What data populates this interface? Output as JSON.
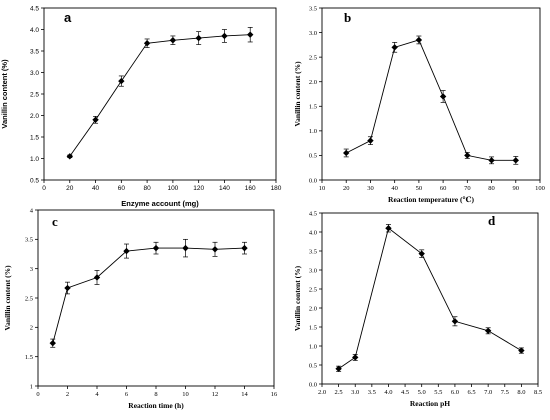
{
  "chart_data": [
    {
      "type": "line",
      "panel_letter": "a",
      "xlabel": "Enzyme account (mg)",
      "ylabel": "Vanillin content (%)",
      "xlim": [
        0,
        180
      ],
      "ylim": [
        0.5,
        4.5
      ],
      "xticks": [
        0,
        20,
        40,
        60,
        80,
        100,
        120,
        140,
        160,
        180
      ],
      "yticks": [
        0.5,
        1.0,
        1.5,
        2.0,
        2.5,
        3.0,
        3.5,
        4.0,
        4.5
      ],
      "x_tick_labels": [
        "0",
        "20",
        "40",
        "60",
        "80",
        "100",
        "120",
        "140",
        "160",
        "180"
      ],
      "y_tick_labels": [
        "0.5",
        "1.0",
        "1.5",
        "2.0",
        "2.5",
        "3.0",
        "3.5",
        "4.0",
        "4.5"
      ],
      "x": [
        20,
        40,
        60,
        80,
        100,
        120,
        140,
        160
      ],
      "y": [
        1.05,
        1.9,
        2.8,
        3.68,
        3.75,
        3.8,
        3.85,
        3.88
      ],
      "error": [
        0.03,
        0.08,
        0.12,
        0.1,
        0.1,
        0.15,
        0.15,
        0.17
      ],
      "grid": false,
      "serif": false
    },
    {
      "type": "line",
      "panel_letter": "b",
      "xlabel": "Reaction temperature (℃)",
      "ylabel": "Vanillin content (%)",
      "xlim": [
        10,
        100
      ],
      "ylim": [
        0.0,
        3.5
      ],
      "xticks": [
        10,
        20,
        30,
        40,
        50,
        60,
        70,
        80,
        90,
        100
      ],
      "yticks": [
        0.0,
        0.5,
        1.0,
        1.5,
        2.0,
        2.5,
        3.0,
        3.5
      ],
      "x_tick_labels": [
        "10",
        "20",
        "30",
        "40",
        "50",
        "60",
        "70",
        "80",
        "90",
        "100"
      ],
      "y_tick_labels": [
        "0.0",
        "0.5",
        "1.0",
        "1.5",
        "2.0",
        "2.5",
        "3.0",
        "3.5"
      ],
      "x": [
        20,
        30,
        40,
        50,
        60,
        70,
        80,
        90
      ],
      "y": [
        0.55,
        0.8,
        2.7,
        2.85,
        1.7,
        0.5,
        0.4,
        0.4
      ],
      "error": [
        0.08,
        0.08,
        0.1,
        0.08,
        0.12,
        0.06,
        0.07,
        0.08
      ],
      "grid": false,
      "serif": true
    },
    {
      "type": "line",
      "panel_letter": "c",
      "xlabel": "Reaction time (h)",
      "ylabel": "Vanillin content (%)",
      "xlim": [
        0,
        16
      ],
      "ylim": [
        1.0,
        4.0
      ],
      "xticks": [
        0,
        2,
        4,
        6,
        8,
        10,
        12,
        14,
        16
      ],
      "yticks": [
        1.0,
        1.5,
        2.0,
        2.5,
        3.0,
        3.5,
        4.0
      ],
      "x_tick_labels": [
        "0",
        "2",
        "4",
        "6",
        "8",
        "10",
        "12",
        "14",
        "16"
      ],
      "y_tick_labels": [
        "1",
        "1.5",
        "2",
        "2.5",
        "3",
        "3.5",
        "4"
      ],
      "x": [
        1,
        2,
        4,
        6,
        8,
        10,
        12,
        14
      ],
      "y": [
        1.73,
        2.67,
        2.85,
        3.3,
        3.35,
        3.35,
        3.33,
        3.35
      ],
      "error": [
        0.07,
        0.1,
        0.12,
        0.12,
        0.1,
        0.15,
        0.12,
        0.1
      ],
      "grid": false,
      "serif": true
    },
    {
      "type": "line",
      "panel_letter": "d",
      "xlabel": "Reaction pH",
      "ylabel": "Vanillin content (%)",
      "xlim": [
        2.0,
        8.5
      ],
      "ylim": [
        0.0,
        4.5
      ],
      "xticks": [
        2.0,
        2.5,
        3.0,
        3.5,
        4.0,
        4.5,
        5.0,
        5.5,
        6.0,
        6.5,
        7.0,
        7.5,
        8.0,
        8.5
      ],
      "yticks": [
        0.0,
        0.5,
        1.0,
        1.5,
        2.0,
        2.5,
        3.0,
        3.5,
        4.0,
        4.5
      ],
      "x_tick_labels": [
        "2.0",
        "2.5",
        "3.0",
        "3.5",
        "4.0",
        "4.5",
        "5.0",
        "5.5",
        "6.0",
        "6.5",
        "7.0",
        "7.5",
        "8.0",
        "8.5"
      ],
      "y_tick_labels": [
        "0.0",
        "0.5",
        "1.0",
        "1.5",
        "2.0",
        "2.5",
        "3.0",
        "3.5",
        "4.0",
        "4.5"
      ],
      "x": [
        2.5,
        3.0,
        4.0,
        5.0,
        6.0,
        7.0,
        8.0
      ],
      "y": [
        0.4,
        0.7,
        4.1,
        3.43,
        1.65,
        1.4,
        0.88
      ],
      "error": [
        0.07,
        0.08,
        0.1,
        0.1,
        0.12,
        0.08,
        0.07
      ],
      "grid": false,
      "serif": true
    }
  ]
}
